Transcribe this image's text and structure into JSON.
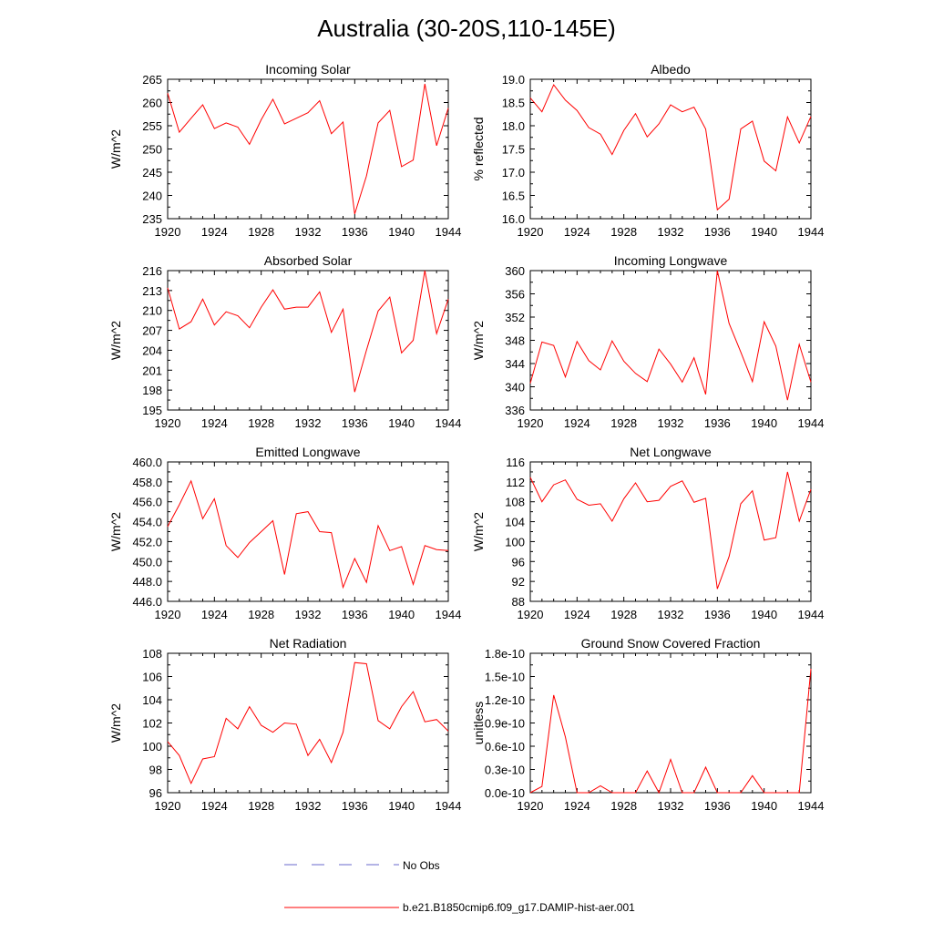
{
  "title": "Australia (30-20S,110-145E)",
  "legend": {
    "entries": [
      {
        "label": "No Obs",
        "color": "#6a6acd",
        "dashed": true
      },
      {
        "label": "b.e21.B1850cmip6.f09_g17.DAMIP-hist-aer.001",
        "color": "#ff0000",
        "dashed": false
      }
    ]
  },
  "chart_data": [
    {
      "type": "line",
      "title": "Incoming Solar",
      "ylabel": "W/m^2",
      "xlim": [
        1920,
        1944
      ],
      "ylim": [
        235,
        265
      ],
      "xticks": [
        "1920",
        "1924",
        "1928",
        "1932",
        "1936",
        "1940",
        "1944"
      ],
      "yticks": [
        "235",
        "240",
        "245",
        "250",
        "255",
        "260",
        "265"
      ],
      "x": [
        1920,
        1921,
        1922,
        1923,
        1924,
        1925,
        1926,
        1927,
        1928,
        1929,
        1930,
        1931,
        1932,
        1933,
        1934,
        1935,
        1936,
        1937,
        1938,
        1939,
        1940,
        1941,
        1942,
        1943,
        1944
      ],
      "series": [
        {
          "name": "b.e21.B1850cmip6.f09_g17.DAMIP-hist-aer.001",
          "color": "#ff0000",
          "values": [
            262.0,
            253.6,
            256.6,
            259.5,
            254.4,
            255.6,
            254.7,
            251.0,
            256.3,
            260.7,
            255.4,
            256.6,
            257.8,
            260.4,
            253.3,
            255.8,
            236.0,
            244.2,
            255.6,
            258.3,
            246.2,
            247.6,
            264.0,
            250.7,
            258.8
          ]
        }
      ]
    },
    {
      "type": "line",
      "title": "Albedo",
      "ylabel": "% reflected",
      "xlim": [
        1920,
        1944
      ],
      "ylim": [
        16.0,
        19.0
      ],
      "xticks": [
        "1920",
        "1924",
        "1928",
        "1932",
        "1936",
        "1940",
        "1944"
      ],
      "yticks": [
        "16.0",
        "16.5",
        "17.0",
        "17.5",
        "18.0",
        "18.5",
        "19.0"
      ],
      "x": [
        1920,
        1921,
        1922,
        1923,
        1924,
        1925,
        1926,
        1927,
        1928,
        1929,
        1930,
        1931,
        1932,
        1933,
        1934,
        1935,
        1936,
        1937,
        1938,
        1939,
        1940,
        1941,
        1942,
        1943,
        1944
      ],
      "series": [
        {
          "name": "b.e21.B1850cmip6.f09_g17.DAMIP-hist-aer.001",
          "color": "#ff0000",
          "values": [
            18.6,
            18.3,
            18.88,
            18.55,
            18.33,
            17.96,
            17.82,
            17.38,
            17.9,
            18.26,
            17.76,
            18.04,
            18.45,
            18.3,
            18.4,
            17.93,
            16.19,
            16.42,
            17.93,
            18.1,
            17.24,
            17.03,
            18.19,
            17.63,
            18.2
          ]
        }
      ]
    },
    {
      "type": "line",
      "title": "Absorbed Solar",
      "ylabel": "W/m^2",
      "xlim": [
        1920,
        1944
      ],
      "ylim": [
        195,
        216
      ],
      "xticks": [
        "1920",
        "1924",
        "1928",
        "1932",
        "1936",
        "1940",
        "1944"
      ],
      "yticks": [
        "195",
        "198",
        "201",
        "204",
        "207",
        "210",
        "213",
        "216"
      ],
      "x": [
        1920,
        1921,
        1922,
        1923,
        1924,
        1925,
        1926,
        1927,
        1928,
        1929,
        1930,
        1931,
        1932,
        1933,
        1934,
        1935,
        1936,
        1937,
        1938,
        1939,
        1940,
        1941,
        1942,
        1943,
        1944
      ],
      "series": [
        {
          "name": "b.e21.B1850cmip6.f09_g17.DAMIP-hist-aer.001",
          "color": "#ff0000",
          "values": [
            213.4,
            207.2,
            208.3,
            211.7,
            207.8,
            209.8,
            209.2,
            207.4,
            210.5,
            213.1,
            210.2,
            210.5,
            210.5,
            212.8,
            206.7,
            210.2,
            197.7,
            204.0,
            209.9,
            212.0,
            203.6,
            205.5,
            216.0,
            206.5,
            211.7
          ]
        }
      ]
    },
    {
      "type": "line",
      "title": "Incoming Longwave",
      "ylabel": "W/m^2",
      "xlim": [
        1920,
        1944
      ],
      "ylim": [
        336,
        360
      ],
      "xticks": [
        "1920",
        "1924",
        "1928",
        "1932",
        "1936",
        "1940",
        "1944"
      ],
      "yticks": [
        "336",
        "340",
        "344",
        "348",
        "352",
        "356",
        "360"
      ],
      "x": [
        1920,
        1921,
        1922,
        1923,
        1924,
        1925,
        1926,
        1927,
        1928,
        1929,
        1930,
        1931,
        1932,
        1933,
        1934,
        1935,
        1936,
        1937,
        1938,
        1939,
        1940,
        1941,
        1942,
        1943,
        1944
      ],
      "series": [
        {
          "name": "b.e21.B1850cmip6.f09_g17.DAMIP-hist-aer.001",
          "color": "#ff0000",
          "values": [
            340.6,
            347.7,
            347.1,
            341.7,
            347.8,
            344.5,
            342.9,
            347.9,
            344.4,
            342.3,
            340.9,
            346.5,
            343.9,
            340.8,
            345.0,
            338.7,
            360.0,
            350.9,
            346.0,
            340.9,
            351.2,
            347.0,
            337.7,
            347.3,
            340.8
          ]
        }
      ]
    },
    {
      "type": "line",
      "title": "Emitted Longwave",
      "ylabel": "W/m^2",
      "xlim": [
        1920,
        1944
      ],
      "ylim": [
        446.0,
        460.0
      ],
      "xticks": [
        "1920",
        "1924",
        "1928",
        "1932",
        "1936",
        "1940",
        "1944"
      ],
      "yticks": [
        "446.0",
        "448.0",
        "450.0",
        "452.0",
        "454.0",
        "456.0",
        "458.0",
        "460.0"
      ],
      "x": [
        1920,
        1921,
        1922,
        1923,
        1924,
        1925,
        1926,
        1927,
        1928,
        1929,
        1930,
        1931,
        1932,
        1933,
        1934,
        1935,
        1936,
        1937,
        1938,
        1939,
        1940,
        1941,
        1942,
        1943,
        1944
      ],
      "series": [
        {
          "name": "b.e21.B1850cmip6.f09_g17.DAMIP-hist-aer.001",
          "color": "#ff0000",
          "values": [
            453.5,
            455.7,
            458.1,
            454.3,
            456.3,
            451.6,
            450.4,
            451.9,
            453.0,
            454.1,
            448.7,
            454.8,
            455.0,
            453.0,
            452.9,
            447.4,
            450.3,
            447.9,
            453.6,
            451.1,
            451.5,
            447.7,
            451.6,
            451.2,
            451.1
          ]
        }
      ]
    },
    {
      "type": "line",
      "title": "Net Longwave",
      "ylabel": "W/m^2",
      "xlim": [
        1920,
        1944
      ],
      "ylim": [
        88,
        116
      ],
      "xticks": [
        "1920",
        "1924",
        "1928",
        "1932",
        "1936",
        "1940",
        "1944"
      ],
      "yticks": [
        "88",
        "92",
        "96",
        "100",
        "104",
        "108",
        "112",
        "116"
      ],
      "x": [
        1920,
        1921,
        1922,
        1923,
        1924,
        1925,
        1926,
        1927,
        1928,
        1929,
        1930,
        1931,
        1932,
        1933,
        1934,
        1935,
        1936,
        1937,
        1938,
        1939,
        1940,
        1941,
        1942,
        1943,
        1944
      ],
      "series": [
        {
          "name": "b.e21.B1850cmip6.f09_g17.DAMIP-hist-aer.001",
          "color": "#ff0000",
          "values": [
            112.9,
            108.0,
            111.4,
            112.4,
            108.5,
            107.3,
            107.6,
            104.1,
            108.6,
            111.8,
            108.0,
            108.3,
            111.1,
            112.2,
            107.9,
            108.7,
            90.5,
            97.0,
            107.6,
            110.2,
            100.3,
            100.8,
            114.0,
            104.1,
            110.5
          ]
        }
      ]
    },
    {
      "type": "line",
      "title": "Net Radiation",
      "ylabel": "W/m^2",
      "xlim": [
        1920,
        1944
      ],
      "ylim": [
        96,
        108
      ],
      "xticks": [
        "1920",
        "1924",
        "1928",
        "1932",
        "1936",
        "1940",
        "1944"
      ],
      "yticks": [
        "96",
        "98",
        "100",
        "102",
        "104",
        "106",
        "108"
      ],
      "x": [
        1920,
        1921,
        1922,
        1923,
        1924,
        1925,
        1926,
        1927,
        1928,
        1929,
        1930,
        1931,
        1932,
        1933,
        1934,
        1935,
        1936,
        1937,
        1938,
        1939,
        1940,
        1941,
        1942,
        1943,
        1944
      ],
      "series": [
        {
          "name": "b.e21.B1850cmip6.f09_g17.DAMIP-hist-aer.001",
          "color": "#ff0000",
          "values": [
            100.4,
            99.2,
            96.8,
            98.9,
            99.1,
            102.4,
            101.5,
            103.4,
            101.8,
            101.2,
            102.0,
            101.9,
            99.2,
            100.6,
            98.6,
            101.2,
            107.2,
            107.1,
            102.2,
            101.5,
            103.4,
            104.7,
            102.1,
            102.3,
            101.3
          ]
        }
      ]
    },
    {
      "type": "line",
      "title": "Ground Snow Covered Fraction",
      "ylabel": "unitless",
      "xlim": [
        1920,
        1944
      ],
      "ylim": [
        0,
        1.8e-10
      ],
      "xticks": [
        "1920",
        "1924",
        "1928",
        "1932",
        "1936",
        "1940",
        "1944"
      ],
      "yticks": [
        "0.0e-10",
        "0.3e-10",
        "0.6e-10",
        "0.9e-10",
        "1.2e-10",
        "1.5e-10",
        "1.8e-10"
      ],
      "x": [
        1920,
        1921,
        1922,
        1923,
        1924,
        1925,
        1926,
        1927,
        1928,
        1929,
        1930,
        1931,
        1932,
        1933,
        1934,
        1935,
        1936,
        1937,
        1938,
        1939,
        1940,
        1941,
        1942,
        1943,
        1944
      ],
      "series": [
        {
          "name": "b.e21.B1850cmip6.f09_g17.DAMIP-hist-aer.001",
          "color": "#ff0000",
          "values": [
            0,
            8e-12,
            1.26e-10,
            7.2e-11,
            0,
            0,
            9e-12,
            0,
            0,
            0,
            2.8e-11,
            0,
            4.3e-11,
            0,
            0,
            3.3e-11,
            0,
            0,
            0,
            2.2e-11,
            0,
            0,
            0,
            0,
            1.6e-10
          ]
        }
      ]
    }
  ]
}
